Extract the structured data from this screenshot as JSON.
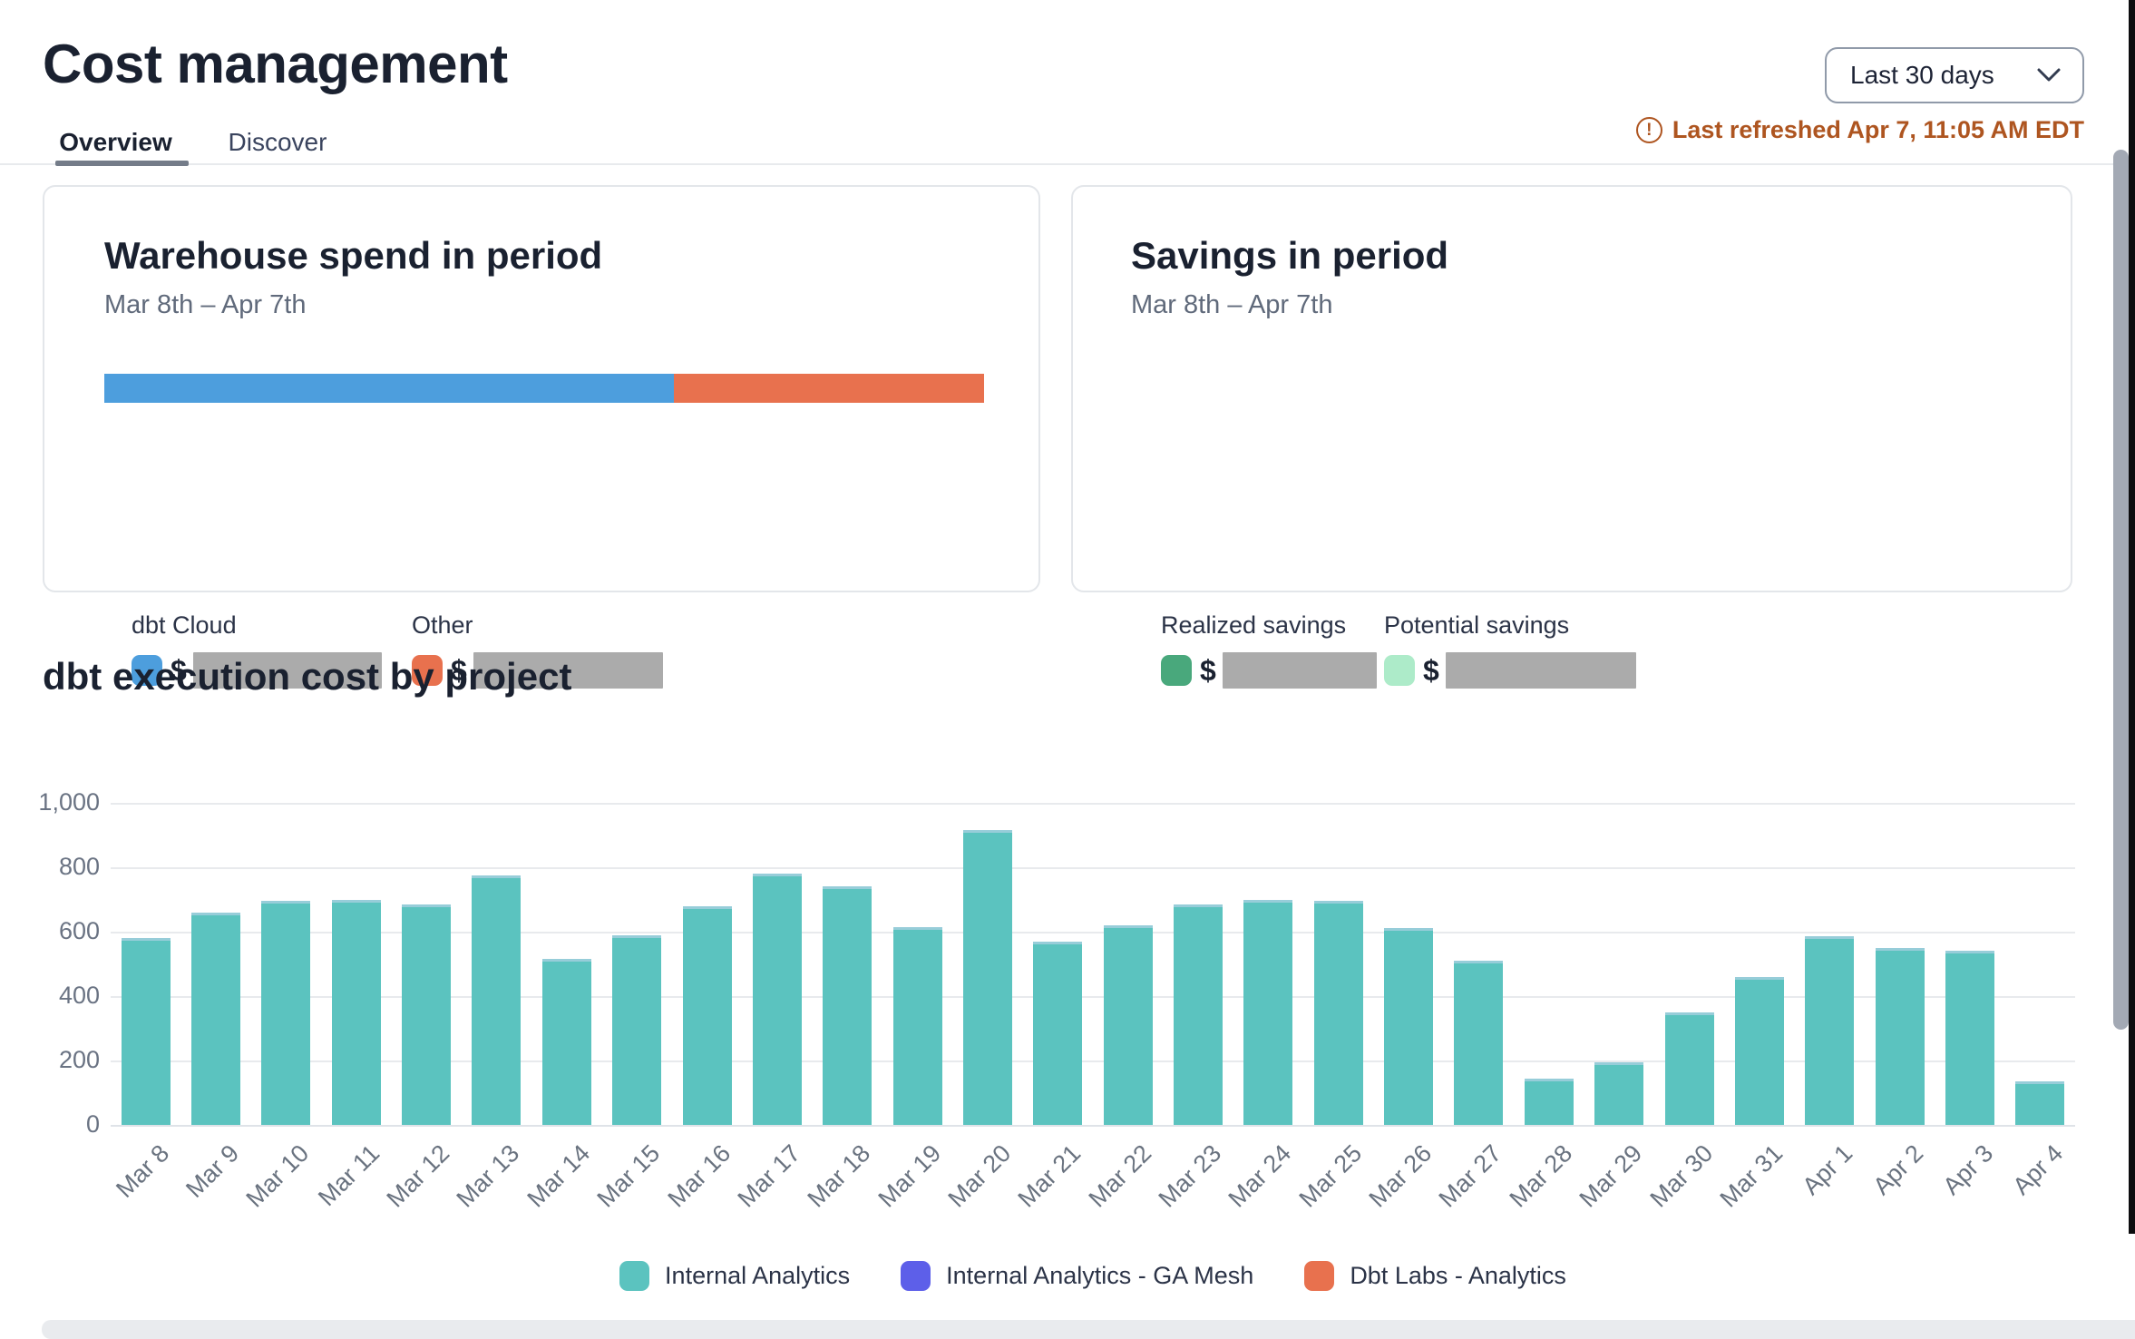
{
  "header": {
    "title": "Cost management",
    "tabs": [
      {
        "label": "Overview",
        "active": true
      },
      {
        "label": "Discover",
        "active": false
      }
    ],
    "range_select": {
      "value": "Last 30 days",
      "icon": "chevron-down-icon"
    },
    "refreshed": {
      "icon": "warning-circle-icon",
      "icon_glyph": "!",
      "text": "Last refreshed Apr 7, 11:05 AM EDT",
      "color": "#ae5520"
    }
  },
  "cards": {
    "warehouse": {
      "title": "Warehouse spend in period",
      "period": "Mar 8th – Apr 7th",
      "legend": [
        {
          "label": "dbt Cloud",
          "currency": "$",
          "color": "#4d9edd",
          "value_redacted": true
        },
        {
          "label": "Other",
          "currency": "$",
          "color": "#e8714e",
          "value_redacted": true
        }
      ]
    },
    "savings": {
      "title": "Savings in period",
      "period": "Mar 8th – Apr 7th",
      "legend": [
        {
          "label": "Realized savings",
          "currency": "$",
          "color": "#49a87c",
          "value_redacted": true
        },
        {
          "label": "Potential savings",
          "currency": "$",
          "color": "#adebc9",
          "value_redacted": true
        }
      ]
    }
  },
  "chart_section": {
    "title": "dbt execution cost by project"
  },
  "chart_data": [
    {
      "type": "stacked_bar",
      "title": "Warehouse spend in period",
      "note": "dollar values redacted in UI",
      "segments": [
        {
          "name": "dbt Cloud",
          "pct": 64.7,
          "color": "#4d9edd"
        },
        {
          "name": "Other",
          "pct": 35.3,
          "color": "#e8714e"
        }
      ]
    },
    {
      "type": "bar",
      "title": "dbt execution cost by project",
      "categories": [
        "Mar 8",
        "Mar 9",
        "Mar 10",
        "Mar 11",
        "Mar 12",
        "Mar 13",
        "Mar 14",
        "Mar 15",
        "Mar 16",
        "Mar 17",
        "Mar 18",
        "Mar 19",
        "Mar 20",
        "Mar 21",
        "Mar 22",
        "Mar 23",
        "Mar 24",
        "Mar 25",
        "Mar 26",
        "Mar 27",
        "Mar 28",
        "Mar 29",
        "Mar 30",
        "Mar 31",
        "Apr 1",
        "Apr 2",
        "Apr 3",
        "Apr 4"
      ],
      "series": [
        {
          "name": "Internal Analytics",
          "color": "#5bc3bf",
          "values": [
            580,
            660,
            695,
            700,
            685,
            775,
            515,
            590,
            680,
            780,
            740,
            615,
            915,
            570,
            620,
            685,
            700,
            695,
            610,
            510,
            145,
            195,
            350,
            460,
            585,
            550,
            540,
            135
          ]
        }
      ],
      "legend_entries": [
        {
          "name": "Internal Analytics",
          "color": "#5bc3bf"
        },
        {
          "name": "Internal Analytics - GA Mesh",
          "color": "#5d5fe9"
        },
        {
          "name": "Dbt Labs - Analytics",
          "color": "#e8714e"
        }
      ],
      "xlabel": "",
      "ylabel": "",
      "ylim": [
        0,
        1000
      ],
      "ytick_values": [
        0,
        200,
        400,
        600,
        800,
        1000
      ],
      "ytick_labels": [
        "0",
        "200",
        "400",
        "600",
        "800",
        "1,000"
      ],
      "grid": true,
      "legend_position": "bottom"
    }
  ]
}
